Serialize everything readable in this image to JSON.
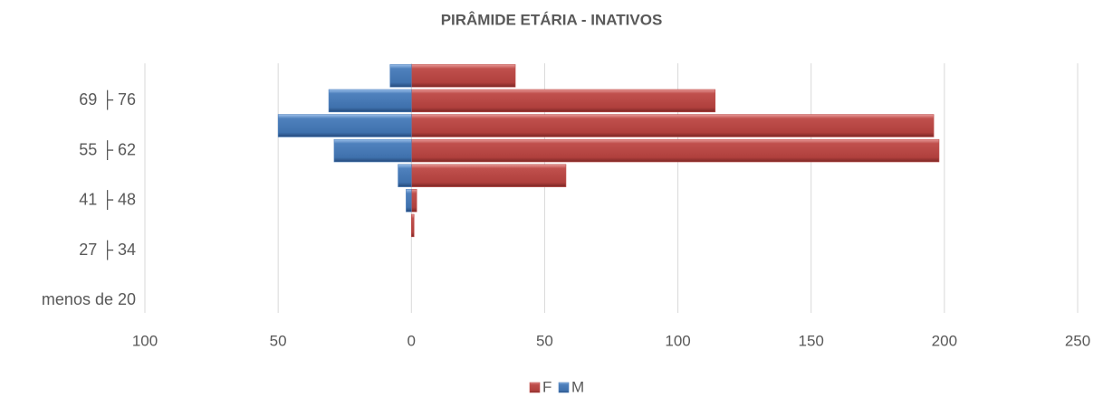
{
  "chart_data": {
    "type": "bar",
    "orientation": "horizontal",
    "title": "PIRÂMIDE ETÁRIA - INATIVOS",
    "categories": [
      "menos de 20",
      null,
      "27 ├ 34",
      null,
      "41 ├ 48",
      null,
      "55 ├ 62",
      null,
      "69 ├ 76",
      null
    ],
    "series": [
      {
        "name": "F",
        "color": "#c0504d",
        "values": [
          0,
          0,
          0,
          1,
          2,
          58,
          198,
          196,
          114,
          39
        ]
      },
      {
        "name": "M",
        "color": "#4f81bd",
        "values": [
          0,
          0,
          0,
          0,
          -2,
          -5,
          -29,
          -50,
          -31,
          -8
        ]
      }
    ],
    "xlim": [
      -100,
      250
    ],
    "xticks": [
      {
        "value": -100,
        "label": "100"
      },
      {
        "value": -50,
        "label": "50"
      },
      0,
      50,
      100,
      150,
      200,
      250
    ],
    "grid": true,
    "legend": "bottom"
  }
}
